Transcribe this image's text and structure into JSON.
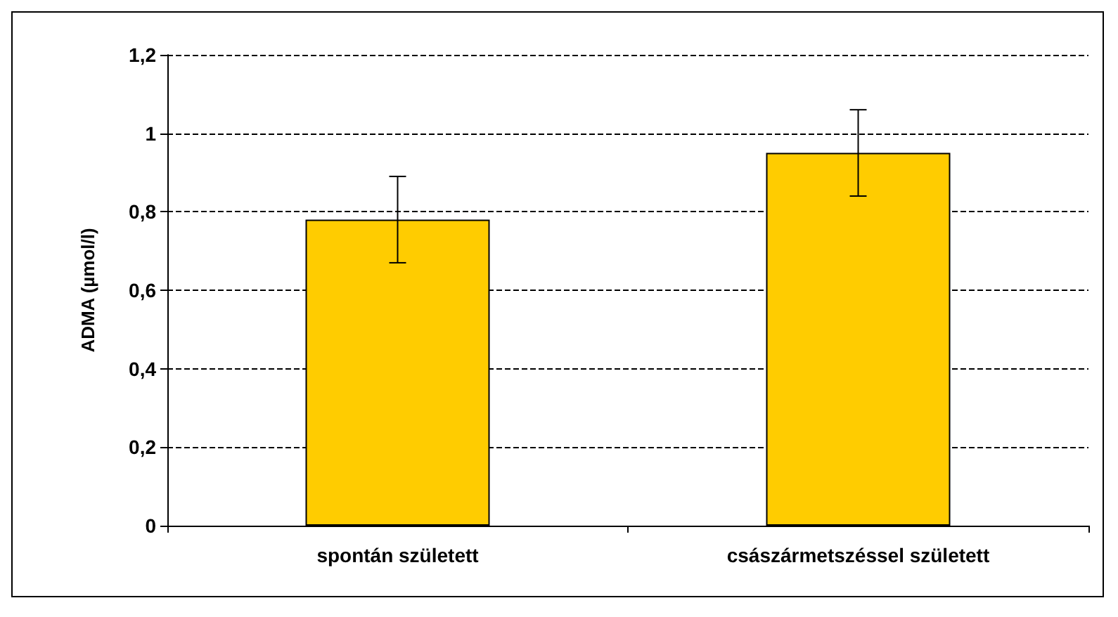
{
  "chart_data": {
    "type": "bar",
    "ylabel": "ADMA (µmol/l)",
    "categories": [
      "spontán született",
      "császármetszéssel született"
    ],
    "values": [
      0.78,
      0.95
    ],
    "errors": [
      0.11,
      0.11
    ],
    "color": "#ffcc00",
    "ylim": [
      0,
      1.2
    ],
    "yticks": [
      {
        "value": 0,
        "label": "0"
      },
      {
        "value": 0.2,
        "label": "0,2"
      },
      {
        "value": 0.4,
        "label": "0,4"
      },
      {
        "value": 0.6,
        "label": "0,6"
      },
      {
        "value": 0.8,
        "label": "0,8"
      },
      {
        "value": 1,
        "label": "1"
      },
      {
        "value": 1.2,
        "label": "1,2"
      }
    ],
    "grid": "y",
    "line_style": "dashed"
  }
}
